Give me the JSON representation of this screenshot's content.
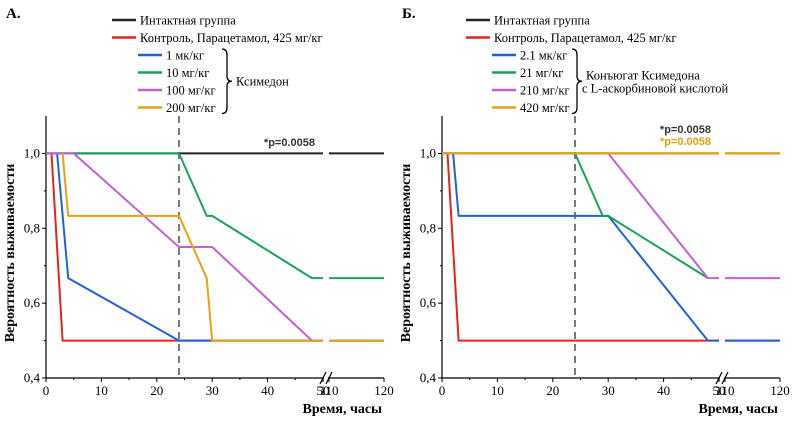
{
  "chart_data": [
    {
      "type": "line",
      "panel_label": "А.",
      "xlabel": "Время, часы",
      "ylabel": "Вероятность выживаемости",
      "ylim": [
        0.4,
        1.1
      ],
      "yticks": [
        "0,4",
        "0,6",
        "0,8",
        "1,0"
      ],
      "xticks": [
        "0",
        "10",
        "20",
        "30",
        "40",
        "50",
        "110",
        "120"
      ],
      "axis_break": [
        50,
        110
      ],
      "vline_x": 24,
      "group_label": "Ксимедон",
      "annotations": [
        {
          "text": "*p=0.0058",
          "color": "#333333"
        }
      ],
      "series": [
        {
          "name": "Интактная группа",
          "color": "#222222",
          "points": [
            [
              0,
              1.0
            ],
            [
              50,
              1.0
            ],
            [
              110,
              1.0
            ],
            [
              120,
              1.0
            ]
          ]
        },
        {
          "name": "Контроль, Парацетамол, 425 мг/кг",
          "color": "#e8231f",
          "points": [
            [
              1,
              1.0
            ],
            [
              3,
              0.5
            ],
            [
              50,
              0.5
            ],
            [
              110,
              0.5
            ],
            [
              120,
              0.5
            ]
          ]
        },
        {
          "name": "1 мк/кг",
          "color": "#1f63d6",
          "points": [
            [
              2,
              1.0
            ],
            [
              4,
              0.667
            ],
            [
              24,
              0.5
            ],
            [
              50,
              0.5
            ],
            [
              110,
              0.5
            ],
            [
              120,
              0.5
            ]
          ]
        },
        {
          "name": "10 мг/кг",
          "color": "#17a35a",
          "points": [
            [
              0,
              1.0
            ],
            [
              24,
              1.0
            ],
            [
              29,
              0.833
            ],
            [
              30,
              0.833
            ],
            [
              48,
              0.667
            ],
            [
              50,
              0.667
            ],
            [
              110,
              0.667
            ],
            [
              120,
              0.667
            ]
          ]
        },
        {
          "name": "100 мг/кг",
          "color": "#c25fd9",
          "points": [
            [
              0,
              1.0
            ],
            [
              5,
              1.0
            ],
            [
              24,
              0.75
            ],
            [
              30,
              0.75
            ],
            [
              48,
              0.5
            ],
            [
              50,
              0.5
            ],
            [
              110,
              0.5
            ],
            [
              120,
              0.5
            ]
          ]
        },
        {
          "name": "200 мг/кг",
          "color": "#e8a20c",
          "points": [
            [
              3,
              1.0
            ],
            [
              4,
              0.833
            ],
            [
              24,
              0.833
            ],
            [
              29,
              0.667
            ],
            [
              30,
              0.5
            ],
            [
              50,
              0.5
            ],
            [
              110,
              0.5
            ],
            [
              120,
              0.5
            ]
          ]
        }
      ]
    },
    {
      "type": "line",
      "panel_label": "Б.",
      "xlabel": "Время, часы",
      "ylabel": "Вероятность выживаемости",
      "ylim": [
        0.4,
        1.1
      ],
      "yticks": [
        "0,4",
        "0,6",
        "0,8",
        "1,0"
      ],
      "xticks": [
        "0",
        "10",
        "20",
        "30",
        "40",
        "50",
        "110",
        "120"
      ],
      "axis_break": [
        50,
        110
      ],
      "vline_x": 24,
      "group_label": "Конъюгат Ксимедона",
      "group_label_line2": "с L-аскорбиновой кислотой",
      "annotations": [
        {
          "text": "*p=0.0058",
          "color": "#333333"
        },
        {
          "text": "*p=0.0058",
          "color": "#e8a20c"
        }
      ],
      "series": [
        {
          "name": "Интактная группа",
          "color": "#222222",
          "points": [
            [
              0,
              1.0
            ],
            [
              50,
              1.0
            ],
            [
              110,
              1.0
            ],
            [
              120,
              1.0
            ]
          ]
        },
        {
          "name": "Контроль, Парацетамол, 425 мг/кг",
          "color": "#e8231f",
          "points": [
            [
              1,
              1.0
            ],
            [
              3,
              0.5
            ],
            [
              50,
              0.5
            ],
            [
              110,
              0.5
            ],
            [
              120,
              0.5
            ]
          ]
        },
        {
          "name": "2.1 мк/кг",
          "color": "#1f63d6",
          "points": [
            [
              2,
              1.0
            ],
            [
              3,
              0.833
            ],
            [
              30,
              0.833
            ],
            [
              48,
              0.5
            ],
            [
              50,
              0.5
            ],
            [
              110,
              0.5
            ],
            [
              120,
              0.5
            ]
          ]
        },
        {
          "name": "21 мг/кг",
          "color": "#17a35a",
          "points": [
            [
              0,
              1.0
            ],
            [
              24,
              1.0
            ],
            [
              29,
              0.833
            ],
            [
              30,
              0.833
            ],
            [
              48,
              0.667
            ]
          ]
        },
        {
          "name": "210 мг/кг",
          "color": "#c25fd9",
          "points": [
            [
              0,
              1.0
            ],
            [
              30,
              1.0
            ],
            [
              48,
              0.667
            ],
            [
              50,
              0.667
            ],
            [
              110,
              0.667
            ],
            [
              120,
              0.667
            ]
          ]
        },
        {
          "name": "420 мг/кг",
          "color": "#e8a20c",
          "points": [
            [
              0,
              1.0
            ],
            [
              50,
              1.0
            ],
            [
              110,
              1.0
            ],
            [
              120,
              1.0
            ]
          ]
        }
      ]
    }
  ]
}
